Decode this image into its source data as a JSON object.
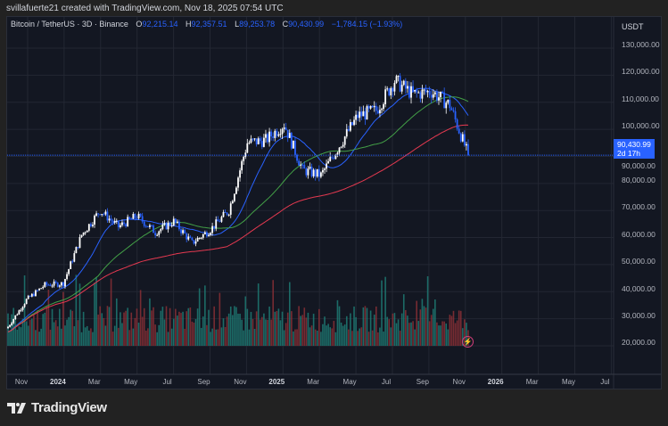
{
  "credit": "svillafuerte21 created with TradingView.com, Nov 18, 2025 07:54 UTC",
  "legend": {
    "symbol": "Bitcoin / TetherUS · 3D · Binance",
    "open_label": "O",
    "open": "92,215.14",
    "high_label": "H",
    "high": "92,357.51",
    "low_label": "L",
    "low": "89,253.78",
    "close_label": "C",
    "close": "90,430.99",
    "change": "−1,784.15 (−1.93%)"
  },
  "price_axis": {
    "currency": "USDT",
    "ticks": [
      "130,000.00",
      "120,000.00",
      "110,000.00",
      "100,000.00",
      "90,000.00",
      "80,000.00",
      "70,000.00",
      "60,000.00",
      "50,000.00",
      "40,000.00",
      "30,000.00",
      "20,000.00"
    ],
    "last_price": "90,430.99",
    "countdown": "2d 17h"
  },
  "time_axis": {
    "ticks": [
      {
        "label": "Nov",
        "bold": false
      },
      {
        "label": "2024",
        "bold": true
      },
      {
        "label": "Mar",
        "bold": false
      },
      {
        "label": "May",
        "bold": false
      },
      {
        "label": "Jul",
        "bold": false
      },
      {
        "label": "Sep",
        "bold": false
      },
      {
        "label": "Nov",
        "bold": false
      },
      {
        "label": "2025",
        "bold": true
      },
      {
        "label": "Mar",
        "bold": false
      },
      {
        "label": "May",
        "bold": false
      },
      {
        "label": "Jul",
        "bold": false
      },
      {
        "label": "Sep",
        "bold": false
      },
      {
        "label": "Nov",
        "bold": false
      },
      {
        "label": "2026",
        "bold": true
      },
      {
        "label": "Mar",
        "bold": false
      },
      {
        "label": "May",
        "bold": false
      },
      {
        "label": "Jul",
        "bold": false
      }
    ]
  },
  "chart_data": {
    "type": "candlestick",
    "interval": "3D",
    "monthly_price_path": [
      27000,
      37000,
      42500,
      43000,
      61000,
      70000,
      64000,
      68000,
      62000,
      66000,
      58000,
      63000,
      70000,
      95000,
      96000,
      102000,
      85000,
      83000,
      94000,
      105000,
      107000,
      118000,
      113000,
      114000,
      109000,
      90431
    ],
    "ylim": [
      20000,
      135000
    ],
    "moving_averages": [
      {
        "color": "#2962ff"
      },
      {
        "color": "#43a047"
      },
      {
        "color": "#e53950"
      }
    ],
    "colors": {
      "up": "#ffffff",
      "down": "#2962ff",
      "vol_up": "#1f7a73",
      "vol_down": "#8a2f35"
    }
  },
  "brand": "TradingView"
}
